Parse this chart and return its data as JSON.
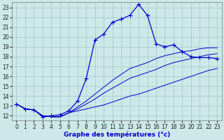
{
  "xlabel": "Graphe des températures (°c)",
  "xlim": [
    -0.5,
    23.5
  ],
  "ylim": [
    11.5,
    23.5
  ],
  "xticks": [
    0,
    1,
    2,
    3,
    4,
    5,
    6,
    7,
    8,
    9,
    10,
    11,
    12,
    13,
    14,
    15,
    16,
    17,
    18,
    19,
    20,
    21,
    22,
    23
  ],
  "yticks": [
    12,
    13,
    14,
    15,
    16,
    17,
    18,
    19,
    20,
    21,
    22,
    23
  ],
  "bg_color": "#cce8e8",
  "grid_color": "#aacccc",
  "line_color": "#0000cc",
  "line1_x": [
    0,
    1,
    2,
    3,
    4,
    5,
    6,
    7,
    8,
    9,
    10,
    11,
    12,
    13,
    14,
    15,
    16,
    17,
    18,
    19,
    20,
    21,
    22,
    23
  ],
  "line1_y": [
    13.2,
    12.7,
    12.6,
    11.9,
    12.0,
    12.1,
    12.5,
    13.5,
    15.8,
    19.7,
    20.3,
    21.5,
    21.8,
    22.2,
    23.3,
    22.2,
    19.3,
    19.0,
    19.2,
    18.5,
    18.0,
    17.9,
    17.9,
    17.8
  ],
  "line2_x": [
    0,
    1,
    2,
    3,
    4,
    5,
    6,
    7,
    8,
    9,
    10,
    11,
    12,
    13,
    14,
    15,
    16,
    17,
    18,
    19,
    20,
    21,
    22,
    23
  ],
  "line2_y": [
    13.2,
    12.7,
    12.6,
    12.0,
    11.9,
    11.9,
    12.3,
    12.5,
    12.7,
    12.9,
    13.1,
    13.4,
    13.7,
    14.0,
    14.2,
    14.5,
    14.8,
    15.1,
    15.4,
    15.7,
    16.0,
    16.3,
    16.6,
    16.8
  ],
  "line3_x": [
    0,
    1,
    2,
    3,
    4,
    5,
    6,
    7,
    8,
    9,
    10,
    11,
    12,
    13,
    14,
    15,
    16,
    17,
    18,
    19,
    20,
    21,
    22,
    23
  ],
  "line3_y": [
    13.2,
    12.7,
    12.6,
    12.0,
    11.9,
    11.9,
    12.3,
    12.7,
    13.2,
    13.7,
    14.3,
    14.8,
    15.3,
    15.8,
    16.1,
    16.4,
    16.7,
    17.1,
    17.4,
    17.6,
    17.8,
    18.0,
    18.2,
    18.3
  ],
  "line4_x": [
    0,
    1,
    2,
    3,
    4,
    5,
    6,
    7,
    8,
    9,
    10,
    11,
    12,
    13,
    14,
    15,
    16,
    17,
    18,
    19,
    20,
    21,
    22,
    23
  ],
  "line4_y": [
    13.2,
    12.7,
    12.6,
    12.0,
    11.9,
    11.9,
    12.3,
    12.9,
    13.5,
    14.2,
    14.9,
    15.6,
    16.2,
    16.8,
    17.1,
    17.4,
    17.8,
    18.1,
    18.3,
    18.5,
    18.6,
    18.8,
    18.9,
    18.9
  ],
  "markersize": 2.5,
  "tick_fontsize": 5.5,
  "xlabel_fontsize": 6.5
}
